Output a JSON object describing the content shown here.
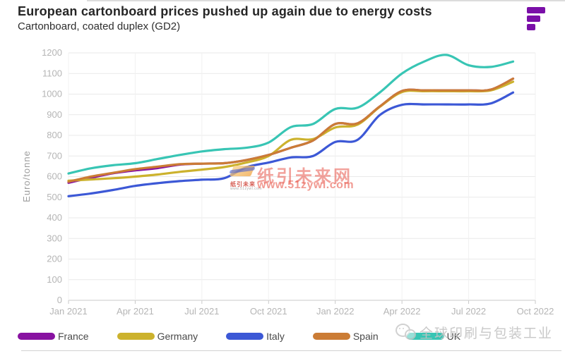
{
  "chart_data": {
    "type": "line",
    "title": "European cartonboard prices pushed up again due to energy costs",
    "subtitle": "Cartonboard, coated duplex (GD2)",
    "ylabel": "Euro/tonne",
    "xlabel": "",
    "ylim": [
      0,
      1200
    ],
    "ytick_step": 100,
    "ytick_labels": [
      "0",
      "100",
      "200",
      "300",
      "400",
      "500",
      "600",
      "700",
      "800",
      "900",
      "1000",
      "1100",
      "1200"
    ],
    "x_tick_labels": [
      "Jan 2021",
      "Apr 2021",
      "Jul 2021",
      "Oct 2021",
      "Jan 2022",
      "Apr 2022",
      "Jul 2022",
      "Oct 2022"
    ],
    "grid": true,
    "legend_position": "bottom",
    "months": [
      "Jan 2021",
      "Feb 2021",
      "Mar 2021",
      "Apr 2021",
      "May 2021",
      "Jun 2021",
      "Jul 2021",
      "Aug 2021",
      "Sep 2021",
      "Oct 2021",
      "Nov 2021",
      "Dec 2021",
      "Jan 2022",
      "Feb 2022",
      "Mar 2022",
      "Apr 2022",
      "May 2022",
      "Jun 2022",
      "Jul 2022",
      "Aug 2022",
      "Sep 2022"
    ],
    "series": [
      {
        "name": "France",
        "color": "#8812a1",
        "values": [
          570,
          594,
          616,
          630,
          641,
          658,
          663,
          665,
          680,
          705,
          740,
          775,
          855,
          858,
          940,
          1015,
          1018,
          1018,
          1018,
          1022,
          1075
        ]
      },
      {
        "name": "Germany",
        "color": "#ccb22d",
        "values": [
          580,
          586,
          592,
          600,
          610,
          623,
          634,
          646,
          668,
          700,
          778,
          782,
          838,
          852,
          938,
          1010,
          1014,
          1014,
          1014,
          1018,
          1060
        ]
      },
      {
        "name": "Italy",
        "color": "#3c58d6",
        "values": [
          505,
          518,
          535,
          555,
          568,
          578,
          585,
          592,
          645,
          668,
          693,
          700,
          768,
          778,
          898,
          948,
          950,
          950,
          950,
          955,
          1008
        ]
      },
      {
        "name": "Spain",
        "color": "#cb7c35",
        "values": [
          575,
          600,
          618,
          636,
          648,
          660,
          663,
          665,
          680,
          705,
          740,
          775,
          855,
          858,
          940,
          1015,
          1018,
          1018,
          1018,
          1022,
          1075
        ]
      },
      {
        "name": "UK",
        "color": "#38c5b4",
        "values": [
          615,
          640,
          655,
          665,
          685,
          705,
          722,
          733,
          740,
          765,
          840,
          855,
          928,
          934,
          1008,
          1100,
          1158,
          1190,
          1140,
          1132,
          1158
        ]
      }
    ]
  },
  "logo": {
    "name": "fastmarkets-logo",
    "color": "#7a0fa8"
  },
  "watermark_center": {
    "main": "纸引未来网",
    "url": "www.51zywl.com",
    "logo_text": "纸引未来",
    "logo_sub": "www.51zywl.com",
    "color": "#e8564a"
  },
  "watermark_bottom": {
    "text": "全球印刷与包装工业"
  },
  "colors": {
    "axis_text": "#b5b5b5",
    "axis_line": "#c9c9c9",
    "grid_h": "#e9e9e9",
    "grid_v": "#f1f1f1",
    "ylabel_text": "#9c9c9c"
  }
}
